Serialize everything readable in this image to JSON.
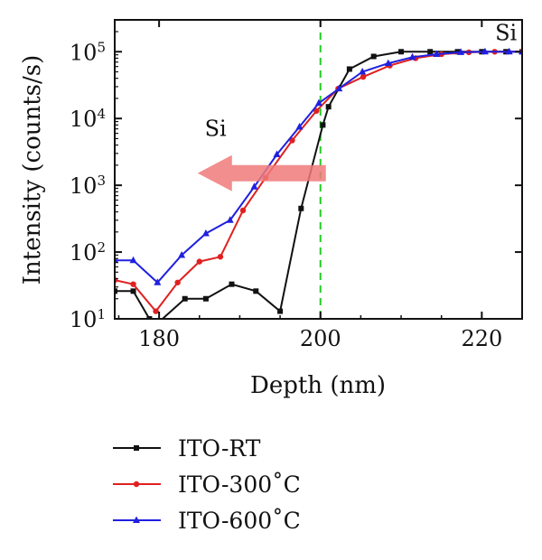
{
  "chart_data": {
    "type": "line",
    "title": "",
    "xlabel": "Depth (nm)",
    "ylabel": "Intensity (counts/s)",
    "xlim": [
      174.5,
      225
    ],
    "ylim": [
      10,
      300000
    ],
    "yscale": "log",
    "xticks": [
      180,
      200,
      220
    ],
    "yticks": [
      {
        "value": 10,
        "base": "10",
        "exp": "1"
      },
      {
        "value": 100,
        "base": "10",
        "exp": "2"
      },
      {
        "value": 1000,
        "base": "10",
        "exp": "3"
      },
      {
        "value": 10000,
        "base": "10",
        "exp": "4"
      },
      {
        "value": 100000,
        "base": "10",
        "exp": "5"
      }
    ],
    "legend_position": "below",
    "grid": false,
    "reference_line": {
      "x": 200,
      "color": "#22cc22",
      "style": "dashed"
    },
    "annotations": [
      {
        "text": "Si",
        "x": 223,
        "y": 150000
      },
      {
        "text": "Si",
        "x": 187,
        "y": 5500
      }
    ],
    "arrow": {
      "from_x": 200,
      "to_x": 185,
      "y": 1300,
      "color": "#f07a7a"
    },
    "series": [
      {
        "name": "ITO-RT",
        "color": "#111111",
        "marker": "square",
        "points": [
          [
            174.5,
            26
          ],
          [
            176.8,
            26
          ],
          [
            178.8,
            10
          ],
          [
            180,
            9
          ],
          [
            183.2,
            20
          ],
          [
            185.8,
            20
          ],
          [
            189,
            33
          ],
          [
            192,
            26
          ],
          [
            195,
            13
          ],
          [
            197.6,
            450
          ],
          [
            200.3,
            8000
          ],
          [
            201,
            15000
          ],
          [
            203.6,
            55000
          ],
          [
            206.6,
            85000
          ],
          [
            210,
            100000
          ],
          [
            213.6,
            100000
          ],
          [
            217,
            100000
          ],
          [
            220,
            100000
          ],
          [
            223,
            100000
          ],
          [
            225,
            100000
          ]
        ]
      },
      {
        "name": "ITO-300˚C",
        "color": "#e02020",
        "marker": "circle",
        "points": [
          [
            174.5,
            38
          ],
          [
            176.8,
            33
          ],
          [
            179.6,
            13
          ],
          [
            182.3,
            35
          ],
          [
            185,
            72
          ],
          [
            187.6,
            85
          ],
          [
            190.4,
            420
          ],
          [
            193.2,
            1300
          ],
          [
            196.5,
            4700
          ],
          [
            199.5,
            13000
          ],
          [
            202.2,
            28000
          ],
          [
            205.3,
            42000
          ],
          [
            208.6,
            62000
          ],
          [
            211.8,
            80000
          ],
          [
            215,
            92000
          ],
          [
            218.4,
            98000
          ],
          [
            221.6,
            100000
          ],
          [
            225,
            100000
          ]
        ]
      },
      {
        "name": "ITO-600˚C",
        "color": "#2020e0",
        "marker": "triangle",
        "points": [
          [
            174.5,
            75
          ],
          [
            176.8,
            75
          ],
          [
            179.8,
            35
          ],
          [
            182.8,
            90
          ],
          [
            185.8,
            190
          ],
          [
            188.8,
            300
          ],
          [
            191.8,
            950
          ],
          [
            194.6,
            2900
          ],
          [
            197.4,
            7500
          ],
          [
            199.8,
            17000
          ],
          [
            202.3,
            28000
          ],
          [
            205.2,
            50000
          ],
          [
            208.4,
            67000
          ],
          [
            211.4,
            83000
          ],
          [
            214.4,
            92000
          ],
          [
            217.4,
            98000
          ],
          [
            220.4,
            100000
          ],
          [
            223.4,
            100000
          ],
          [
            225,
            100000
          ]
        ]
      }
    ]
  }
}
